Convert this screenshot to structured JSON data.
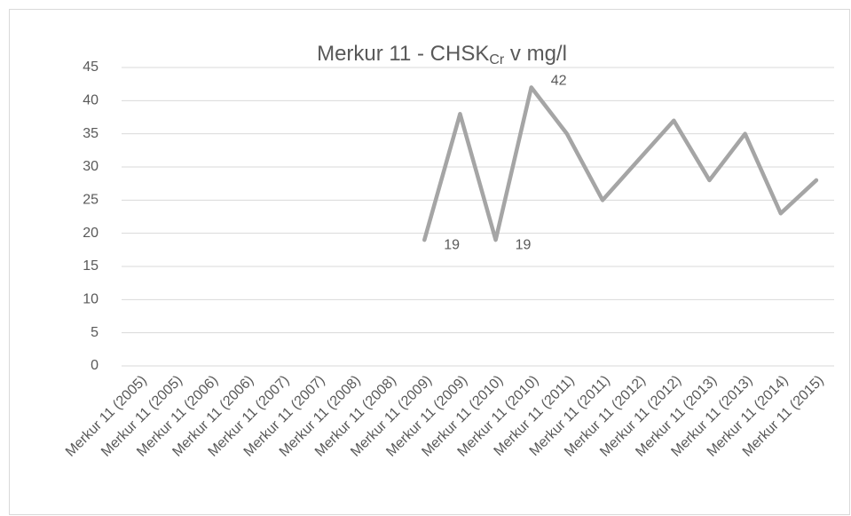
{
  "chart_data": {
    "type": "line",
    "title": [
      "Merkur 11 - CHSK",
      "Cr",
      " v mg/l"
    ],
    "categories": [
      "Merkur 11 (2005)",
      "Merkur 11 (2005)",
      "Merkur 11 (2006)",
      "Merkur 11 (2006)",
      "Merkur 11 (2007)",
      "Merkur 11 (2007)",
      "Merkur 11 (2008)",
      "Merkur 11 (2008)",
      "Merkur 11 (2009)",
      "Merkur 11 (2009)",
      "Merkur 11 (2010)",
      "Merkur 11 (2010)",
      "Merkur 11 (2011)",
      "Merkur 11 (2011)",
      "Merkur 11 (2012)",
      "Merkur 11 (2012)",
      "Merkur 11 (2013)",
      "Merkur 11 (2013)",
      "Merkur 11 (2014)",
      "Merkur 11 (2015)"
    ],
    "series": [
      {
        "name": "CHSK",
        "color": "#a5a5a5",
        "values": [
          null,
          null,
          null,
          null,
          null,
          null,
          null,
          null,
          19,
          38,
          19,
          42,
          35,
          25,
          31,
          37,
          28,
          35,
          23,
          28
        ],
        "value_labels": [
          null,
          null,
          null,
          null,
          null,
          null,
          null,
          null,
          "19",
          null,
          "19",
          "42",
          null,
          null,
          null,
          null,
          null,
          null,
          null,
          null
        ]
      }
    ],
    "ylim": [
      0,
      45
    ],
    "yticks": [
      0,
      5,
      10,
      15,
      20,
      25,
      30,
      35,
      40,
      45
    ],
    "grid": true
  }
}
